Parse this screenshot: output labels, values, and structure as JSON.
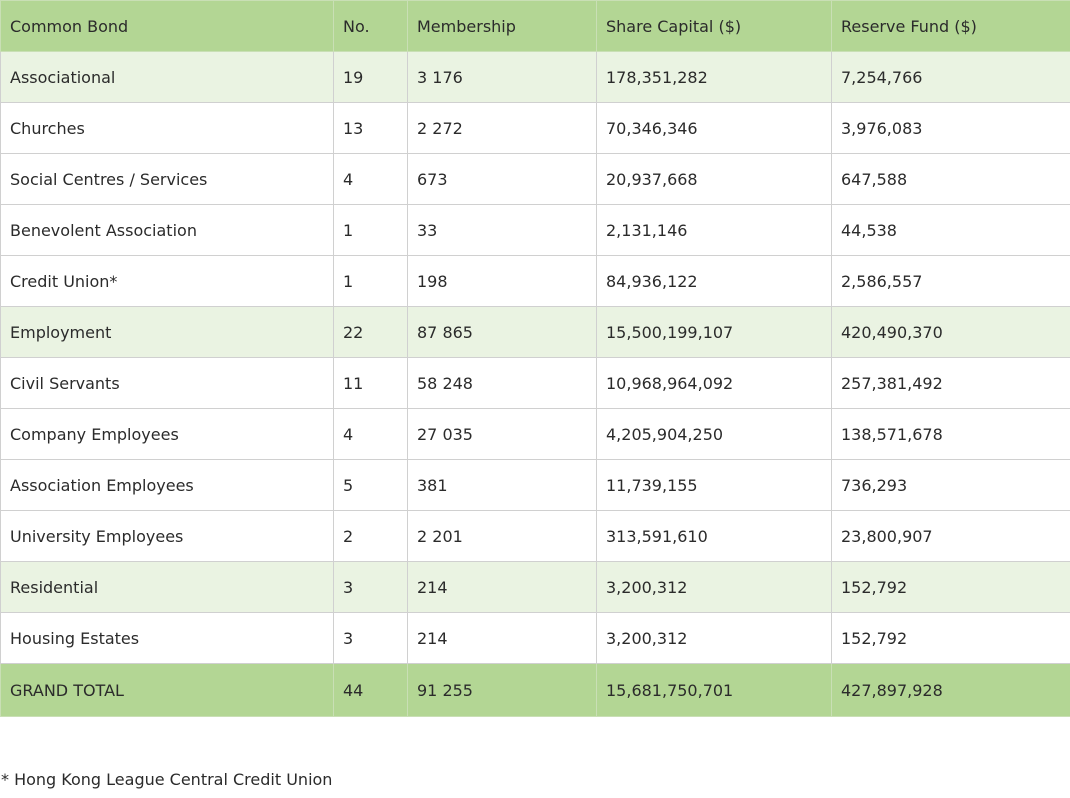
{
  "table": {
    "headers": [
      "Common Bond",
      "No.",
      "Membership",
      "Share Capital ($)",
      "Reserve Fund ($)"
    ],
    "rows": [
      {
        "type": "group",
        "cells": [
          "Associational",
          "19",
          "3 176",
          "178,351,282",
          "7,254,766"
        ]
      },
      {
        "type": "item",
        "cells": [
          "Churches",
          "13",
          "2 272",
          "70,346,346",
          "3,976,083"
        ]
      },
      {
        "type": "item",
        "cells": [
          "Social Centres / Services",
          "4",
          "673",
          "20,937,668",
          "647,588"
        ]
      },
      {
        "type": "item",
        "cells": [
          "Benevolent Association",
          "1",
          "33",
          "2,131,146",
          "44,538"
        ]
      },
      {
        "type": "item",
        "cells": [
          "Credit Union*",
          "1",
          "198",
          "84,936,122",
          "2,586,557"
        ]
      },
      {
        "type": "group",
        "cells": [
          "Employment",
          "22",
          "87 865",
          "15,500,199,107",
          "420,490,370"
        ]
      },
      {
        "type": "item",
        "cells": [
          "Civil Servants",
          "11",
          "58 248",
          "10,968,964,092",
          "257,381,492"
        ]
      },
      {
        "type": "item",
        "cells": [
          "Company Employees",
          "4",
          "27 035",
          "4,205,904,250",
          "138,571,678"
        ]
      },
      {
        "type": "item",
        "cells": [
          "Association Employees",
          "5",
          "381",
          "11,739,155",
          "736,293"
        ]
      },
      {
        "type": "item",
        "cells": [
          "University Employees",
          "2",
          "2 201",
          "313,591,610",
          "23,800,907"
        ]
      },
      {
        "type": "group",
        "cells": [
          "Residential",
          "3",
          "214",
          "3,200,312",
          "152,792"
        ]
      },
      {
        "type": "item",
        "cells": [
          "Housing Estates",
          "3",
          "214",
          "3,200,312",
          "152,792"
        ]
      },
      {
        "type": "total",
        "cells": [
          "GRAND TOTAL",
          "44",
          "91 255",
          "15,681,750,701",
          "427,897,928"
        ]
      }
    ]
  },
  "footnote": "* Hong Kong League Central Credit Union",
  "colors": {
    "header_bg": "#b3d694",
    "group_row_bg": "#eaf3e2",
    "total_row_bg": "#b3d694",
    "border": "#d0d0d0"
  }
}
